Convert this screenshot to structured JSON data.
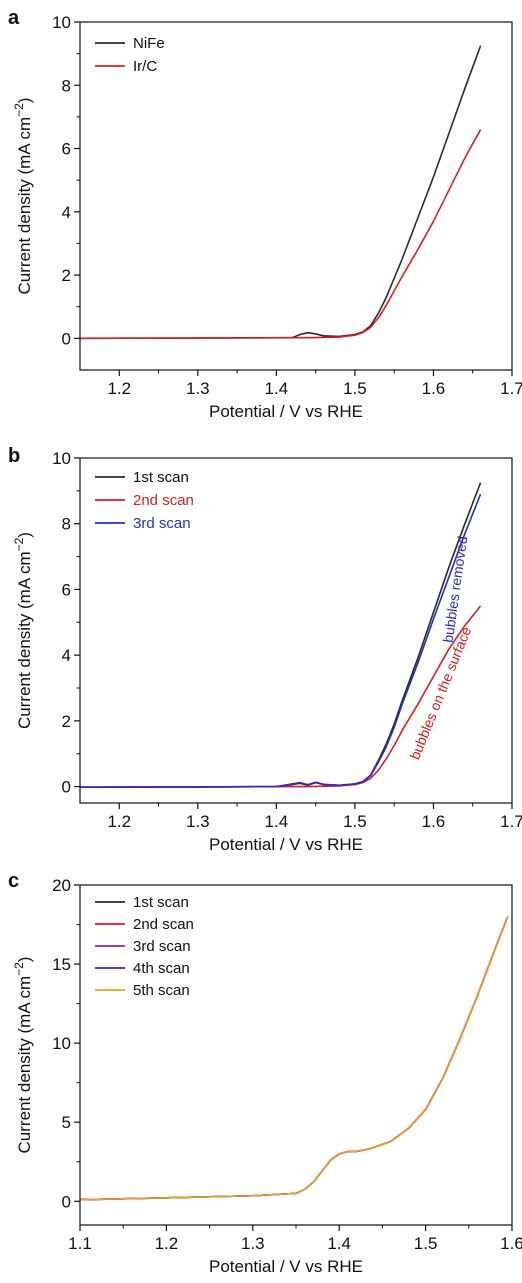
{
  "chart_data": [
    {
      "panel": "a",
      "type": "line",
      "xlabel": "Potential / V vs RHE",
      "ylabel": "Current density (mA cm",
      "ylabel_sup": "−2",
      "ylabel_close": ")",
      "xlim": [
        1.15,
        1.7
      ],
      "ylim": [
        -1,
        10
      ],
      "xticks": [
        "1.2",
        "1.3",
        "1.4",
        "1.5",
        "1.6",
        "1.7"
      ],
      "yticks": [
        "0",
        "2",
        "4",
        "6",
        "8",
        "10"
      ],
      "legend_position": "top-left",
      "series": [
        {
          "name": "NiFe",
          "color": "#2b2b2b",
          "x": [
            1.15,
            1.3,
            1.42,
            1.43,
            1.44,
            1.45,
            1.46,
            1.48,
            1.5,
            1.51,
            1.52,
            1.53,
            1.54,
            1.55,
            1.56,
            1.58,
            1.6,
            1.62,
            1.64,
            1.66
          ],
          "y": [
            0.0,
            0.01,
            0.02,
            0.12,
            0.18,
            0.14,
            0.08,
            0.06,
            0.12,
            0.2,
            0.4,
            0.8,
            1.3,
            1.9,
            2.5,
            3.8,
            5.1,
            6.5,
            7.9,
            9.25
          ]
        },
        {
          "name": "Ir/C",
          "color": "#d42020",
          "x": [
            1.15,
            1.3,
            1.44,
            1.48,
            1.5,
            1.51,
            1.52,
            1.53,
            1.54,
            1.55,
            1.56,
            1.58,
            1.6,
            1.62,
            1.64,
            1.66
          ],
          "y": [
            0.0,
            0.01,
            0.02,
            0.04,
            0.1,
            0.18,
            0.35,
            0.65,
            1.05,
            1.5,
            1.95,
            2.8,
            3.7,
            4.7,
            5.7,
            6.6
          ]
        }
      ]
    },
    {
      "panel": "b",
      "type": "line",
      "xlabel": "Potential / V vs RHE",
      "ylabel": "Current density (mA cm",
      "ylabel_sup": "−2",
      "ylabel_close": ")",
      "xlim": [
        1.15,
        1.7
      ],
      "ylim": [
        -0.5,
        10
      ],
      "xticks": [
        "1.2",
        "1.3",
        "1.4",
        "1.5",
        "1.6",
        "1.7"
      ],
      "yticks": [
        "0",
        "2",
        "4",
        "6",
        "8",
        "10"
      ],
      "legend_position": "top-left",
      "annotations": [
        {
          "text": "bubbles removed",
          "color": "#2a2ad0"
        },
        {
          "text": "bubbles on the surface",
          "color": "#d42020"
        }
      ],
      "series": [
        {
          "name": "1st scan",
          "color": "#2b2b2b",
          "x": [
            1.15,
            1.3,
            1.4,
            1.42,
            1.43,
            1.44,
            1.45,
            1.46,
            1.48,
            1.5,
            1.51,
            1.52,
            1.53,
            1.54,
            1.55,
            1.56,
            1.58,
            1.6,
            1.62,
            1.64,
            1.66
          ],
          "y": [
            -0.02,
            -0.01,
            0.0,
            0.06,
            0.1,
            0.04,
            0.12,
            0.06,
            0.04,
            0.08,
            0.15,
            0.35,
            0.8,
            1.3,
            1.9,
            2.6,
            3.9,
            5.3,
            6.7,
            8.0,
            9.25
          ]
        },
        {
          "name": "2nd scan",
          "color": "#d42020",
          "x": [
            1.15,
            1.3,
            1.44,
            1.48,
            1.5,
            1.51,
            1.52,
            1.53,
            1.54,
            1.55,
            1.56,
            1.58,
            1.6,
            1.62,
            1.64,
            1.66
          ],
          "y": [
            -0.02,
            -0.01,
            0.0,
            0.02,
            0.06,
            0.12,
            0.25,
            0.5,
            0.85,
            1.25,
            1.7,
            2.5,
            3.35,
            4.2,
            4.9,
            5.5
          ]
        },
        {
          "name": "3rd scan",
          "color": "#2a2ad0",
          "x": [
            1.15,
            1.3,
            1.4,
            1.42,
            1.43,
            1.44,
            1.45,
            1.46,
            1.48,
            1.5,
            1.51,
            1.52,
            1.53,
            1.54,
            1.55,
            1.56,
            1.58,
            1.6,
            1.62,
            1.64,
            1.66
          ],
          "y": [
            -0.02,
            -0.01,
            0.0,
            0.08,
            0.12,
            0.06,
            0.13,
            0.07,
            0.04,
            0.08,
            0.14,
            0.33,
            0.75,
            1.22,
            1.8,
            2.5,
            3.75,
            5.1,
            6.4,
            7.7,
            8.9
          ]
        }
      ]
    },
    {
      "panel": "c",
      "type": "line",
      "xlabel": "Potential / V vs RHE",
      "ylabel": "Current density (mA cm",
      "ylabel_sup": "−2",
      "ylabel_close": ")",
      "xlim": [
        1.1,
        1.6
      ],
      "ylim": [
        -1.5,
        20
      ],
      "xticks": [
        "1.1",
        "1.2",
        "1.3",
        "1.4",
        "1.5",
        "1.6"
      ],
      "yticks": [
        "0",
        "5",
        "10",
        "15",
        "20"
      ],
      "legend_position": "top-left",
      "series": [
        {
          "name": "1st scan",
          "color": "#2b2b2b",
          "x": [
            1.1,
            1.2,
            1.3,
            1.35,
            1.36,
            1.37,
            1.38,
            1.39,
            1.4,
            1.41,
            1.42,
            1.43,
            1.44,
            1.46,
            1.48,
            1.5,
            1.52,
            1.54,
            1.56,
            1.58,
            1.595
          ],
          "y": [
            0.1,
            0.22,
            0.35,
            0.5,
            0.75,
            1.2,
            1.9,
            2.6,
            3.0,
            3.15,
            3.15,
            3.25,
            3.4,
            3.8,
            4.6,
            5.8,
            7.8,
            10.3,
            13.0,
            15.9,
            18.0
          ]
        },
        {
          "name": "2nd scan",
          "color": "#d42020",
          "x": [
            1.1,
            1.2,
            1.3,
            1.35,
            1.36,
            1.37,
            1.38,
            1.39,
            1.4,
            1.41,
            1.42,
            1.43,
            1.44,
            1.46,
            1.48,
            1.5,
            1.52,
            1.54,
            1.56,
            1.58,
            1.595
          ],
          "y": [
            0.1,
            0.22,
            0.35,
            0.5,
            0.75,
            1.2,
            1.9,
            2.6,
            3.0,
            3.15,
            3.15,
            3.25,
            3.4,
            3.8,
            4.6,
            5.8,
            7.8,
            10.3,
            13.0,
            15.9,
            18.0
          ]
        },
        {
          "name": "3rd scan",
          "color": "#8a2aa0",
          "x": [
            1.1,
            1.2,
            1.3,
            1.35,
            1.36,
            1.37,
            1.38,
            1.39,
            1.4,
            1.41,
            1.42,
            1.43,
            1.44,
            1.46,
            1.48,
            1.5,
            1.52,
            1.54,
            1.56,
            1.58,
            1.595
          ],
          "y": [
            0.1,
            0.22,
            0.35,
            0.5,
            0.75,
            1.2,
            1.9,
            2.6,
            3.0,
            3.15,
            3.15,
            3.25,
            3.4,
            3.8,
            4.6,
            5.8,
            7.8,
            10.3,
            13.0,
            15.9,
            18.0
          ]
        },
        {
          "name": "4th scan",
          "color": "#2a2ad0",
          "x": [
            1.1,
            1.2,
            1.3,
            1.35,
            1.36,
            1.37,
            1.38,
            1.39,
            1.4,
            1.41,
            1.42,
            1.43,
            1.44,
            1.46,
            1.48,
            1.5,
            1.52,
            1.54,
            1.56,
            1.58,
            1.595
          ],
          "y": [
            0.1,
            0.22,
            0.35,
            0.5,
            0.75,
            1.2,
            1.9,
            2.6,
            3.0,
            3.15,
            3.15,
            3.25,
            3.4,
            3.8,
            4.6,
            5.8,
            7.8,
            10.3,
            13.0,
            15.9,
            18.0
          ]
        },
        {
          "name": "5th scan",
          "color": "#f0a020",
          "x": [
            1.1,
            1.2,
            1.3,
            1.35,
            1.36,
            1.37,
            1.38,
            1.39,
            1.4,
            1.41,
            1.42,
            1.43,
            1.44,
            1.46,
            1.48,
            1.5,
            1.52,
            1.54,
            1.56,
            1.58,
            1.595
          ],
          "y": [
            0.1,
            0.22,
            0.35,
            0.5,
            0.75,
            1.2,
            1.9,
            2.6,
            3.0,
            3.15,
            3.15,
            3.25,
            3.4,
            3.8,
            4.6,
            5.8,
            7.8,
            10.3,
            13.0,
            15.9,
            18.0
          ]
        }
      ]
    }
  ]
}
